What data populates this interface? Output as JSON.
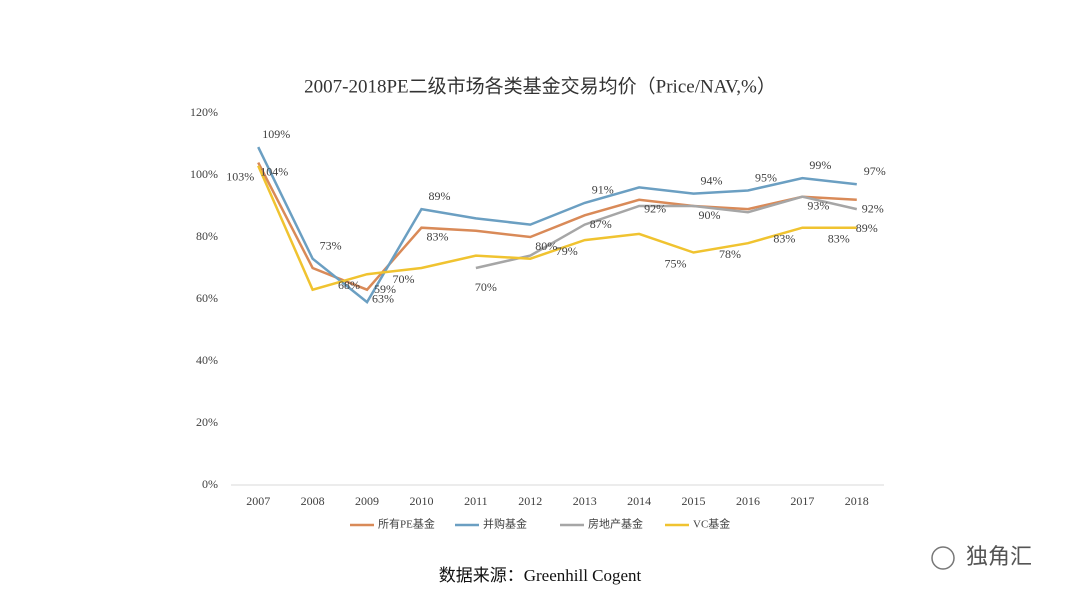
{
  "chart_data": {
    "type": "line",
    "title": "2007-2018PE二级市场各类基金交易均价（Price/NAV,%）",
    "x": [
      2007,
      2008,
      2009,
      2010,
      2011,
      2012,
      2013,
      2014,
      2015,
      2016,
      2017,
      2018
    ],
    "series": [
      {
        "name": "所有PE基金",
        "color": "#d98a58",
        "values": [
          104,
          70,
          63,
          83,
          82,
          80,
          87,
          92,
          90,
          89,
          93,
          92
        ],
        "value_labels": [
          "104%",
          null,
          "63%",
          "83%",
          null,
          "80%",
          "87%",
          "92%",
          "90%",
          null,
          "93%",
          "92%"
        ]
      },
      {
        "name": "并购基金",
        "color": "#6b9fc2",
        "values": [
          109,
          73,
          59,
          89,
          86,
          84,
          91,
          96,
          94,
          95,
          99,
          97
        ],
        "value_labels": [
          "109%",
          "73%",
          "59%",
          "89%",
          null,
          null,
          "91%",
          null,
          "94%",
          "95%",
          "99%",
          "97%"
        ]
      },
      {
        "name": "房地产基金",
        "color": "#a6a6a6",
        "values": [
          null,
          null,
          null,
          null,
          70,
          74,
          84,
          90,
          90,
          88,
          93,
          89
        ],
        "value_labels": [
          null,
          null,
          null,
          null,
          "70%",
          null,
          null,
          null,
          null,
          null,
          null,
          "89%"
        ]
      },
      {
        "name": "VC基金",
        "color": "#f0c330",
        "values": [
          103,
          63,
          68,
          70,
          74,
          73,
          79,
          81,
          75,
          78,
          83,
          83
        ],
        "value_labels": [
          "103%",
          null,
          "68%",
          "70%",
          null,
          null,
          "79%",
          null,
          "75%",
          "78%",
          "83%",
          "83%"
        ]
      }
    ],
    "ylim": [
      0,
      120
    ],
    "yticks": [
      {
        "value": 0,
        "label": "0%"
      },
      {
        "value": 20,
        "label": "20%"
      },
      {
        "value": 40,
        "label": "40%"
      },
      {
        "value": 60,
        "label": "60%"
      },
      {
        "value": 80,
        "label": "80%"
      },
      {
        "value": 100,
        "label": "100%"
      },
      {
        "value": 120,
        "label": "120%"
      }
    ],
    "legend": "bottom",
    "source": "数据来源：Greenhill Cogent",
    "watermark": "独角汇"
  }
}
